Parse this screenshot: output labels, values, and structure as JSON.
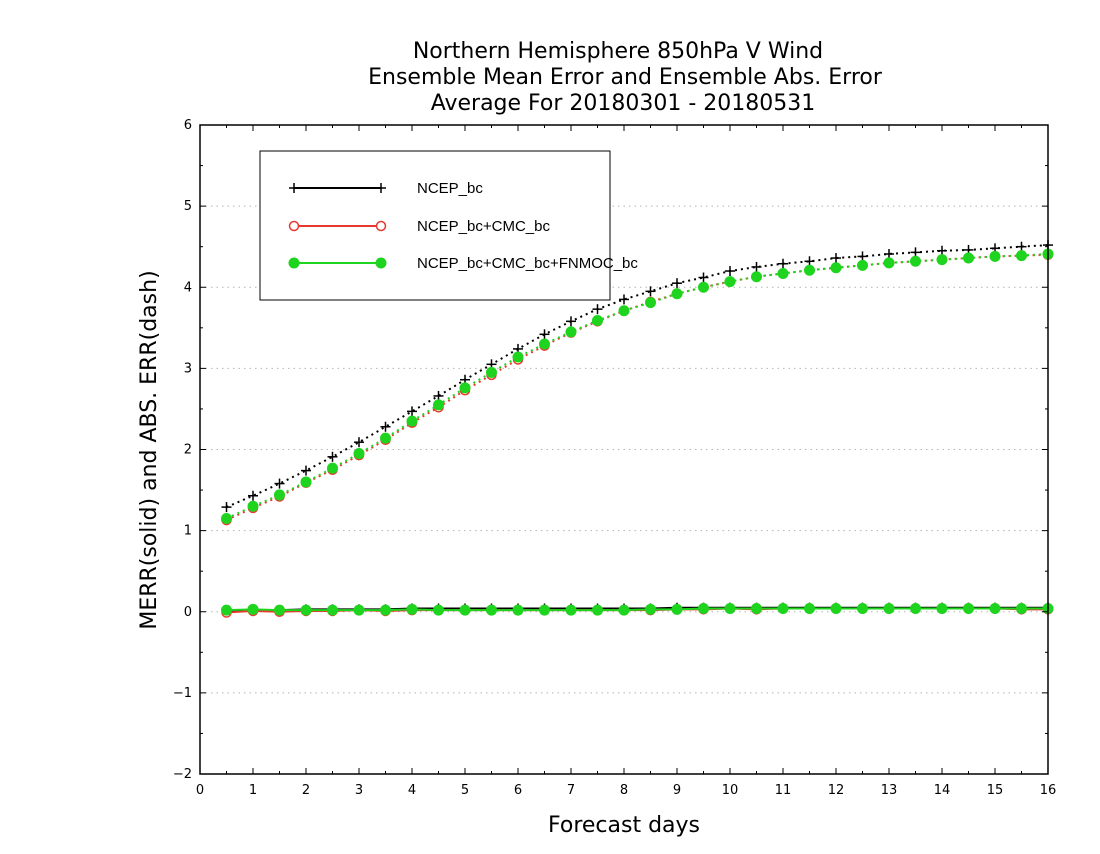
{
  "chart_data": {
    "type": "line",
    "title": [
      "Northern Hemisphere 850hPa V Wind",
      "Ensemble Mean Error and Ensemble Abs. Error",
      "Average For 20180301 - 20180531"
    ],
    "xlabel": "Forecast days",
    "ylabel": "MERR(solid) and ABS. ERR(dash)",
    "xlim": [
      0,
      16
    ],
    "ylim": [
      -2,
      6
    ],
    "x_ticks": [
      0,
      1,
      2,
      3,
      4,
      5,
      6,
      7,
      8,
      9,
      10,
      11,
      12,
      13,
      14,
      15,
      16
    ],
    "y_ticks": [
      -2,
      -1,
      0,
      1,
      2,
      3,
      4,
      5,
      6
    ],
    "y_tick_labels": [
      "−2",
      "−1",
      "0",
      "1",
      "2",
      "3",
      "4",
      "5",
      "6"
    ],
    "grid": "horizontal dotted",
    "legend_position": "top-left",
    "x": [
      0.5,
      1,
      1.5,
      2,
      2.5,
      3,
      3.5,
      4,
      4.5,
      5,
      5.5,
      6,
      6.5,
      7,
      7.5,
      8,
      8.5,
      9,
      9.5,
      10,
      10.5,
      11,
      11.5,
      12,
      12.5,
      13,
      13.5,
      14,
      14.5,
      15,
      15.5,
      16
    ],
    "series": [
      {
        "name": "NCEP_bc",
        "color": "#000000",
        "marker": "plus",
        "merr": [
          0.01,
          0.02,
          0.02,
          0.03,
          0.03,
          0.03,
          0.03,
          0.04,
          0.04,
          0.04,
          0.04,
          0.04,
          0.04,
          0.04,
          0.04,
          0.04,
          0.04,
          0.05,
          0.05,
          0.05,
          0.05,
          0.05,
          0.05,
          0.05,
          0.05,
          0.05,
          0.05,
          0.05,
          0.05,
          0.05,
          0.05,
          0.05
        ],
        "abs_err": [
          1.29,
          1.43,
          1.58,
          1.74,
          1.91,
          2.09,
          2.28,
          2.47,
          2.66,
          2.86,
          3.05,
          3.24,
          3.42,
          3.58,
          3.73,
          3.85,
          3.95,
          4.05,
          4.12,
          4.2,
          4.25,
          4.29,
          4.32,
          4.36,
          4.38,
          4.41,
          4.43,
          4.45,
          4.46,
          4.48,
          4.5,
          4.52
        ]
      },
      {
        "name": "NCEP_bc+CMC_bc",
        "color": "#e8392f",
        "marker": "open-circle",
        "merr": [
          -0.01,
          0.01,
          0.0,
          0.01,
          0.01,
          0.02,
          0.01,
          0.02,
          0.02,
          0.02,
          0.02,
          0.02,
          0.02,
          0.02,
          0.02,
          0.02,
          0.02,
          0.03,
          0.03,
          0.04,
          0.03,
          0.04,
          0.04,
          0.04,
          0.04,
          0.04,
          0.04,
          0.04,
          0.04,
          0.04,
          0.03,
          0.03
        ],
        "abs_err": [
          1.13,
          1.28,
          1.42,
          1.59,
          1.75,
          1.93,
          2.12,
          2.33,
          2.52,
          2.73,
          2.92,
          3.11,
          3.28,
          3.44,
          3.58,
          3.71,
          3.82,
          3.92,
          4.0,
          4.07,
          4.13,
          4.17,
          4.21,
          4.24,
          4.27,
          4.3,
          4.32,
          4.34,
          4.36,
          4.38,
          4.39,
          4.4
        ]
      },
      {
        "name": "NCEP_bc+CMC_bc+FNMOC_bc",
        "color": "#1ed41e",
        "marker": "filled-circle",
        "merr": [
          0.02,
          0.03,
          0.02,
          0.02,
          0.02,
          0.02,
          0.02,
          0.03,
          0.02,
          0.02,
          0.02,
          0.02,
          0.02,
          0.02,
          0.02,
          0.02,
          0.03,
          0.03,
          0.04,
          0.04,
          0.04,
          0.04,
          0.04,
          0.04,
          0.04,
          0.04,
          0.04,
          0.04,
          0.04,
          0.04,
          0.04,
          0.04
        ],
        "abs_err": [
          1.15,
          1.3,
          1.44,
          1.6,
          1.77,
          1.95,
          2.14,
          2.35,
          2.55,
          2.76,
          2.95,
          3.14,
          3.3,
          3.45,
          3.59,
          3.71,
          3.81,
          3.92,
          4.0,
          4.07,
          4.13,
          4.17,
          4.21,
          4.24,
          4.27,
          4.3,
          4.32,
          4.34,
          4.36,
          4.38,
          4.39,
          4.41
        ]
      }
    ]
  }
}
